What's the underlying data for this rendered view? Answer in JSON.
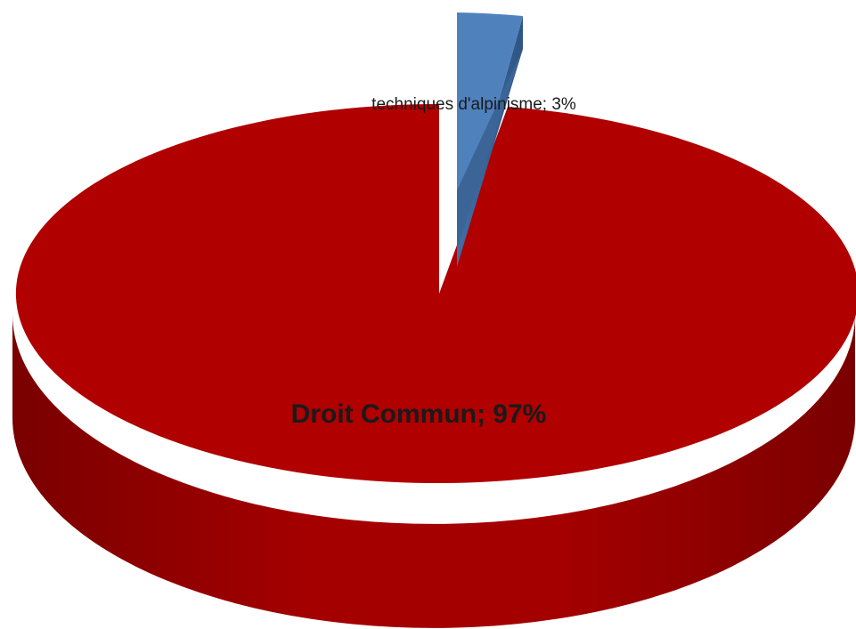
{
  "chart_data": {
    "type": "pie",
    "style": "3d-exploded",
    "title": "",
    "legend": "none",
    "slices": [
      {
        "label": "Droit Commun; 97%",
        "category": "Droit Commun",
        "value": 97,
        "color": "#b00000",
        "side_color": "#8c0000"
      },
      {
        "label": "techniques d'alpinisme; 3%",
        "category": "techniques d'alpinisme",
        "value": 3,
        "color": "#4f81bd",
        "side_color": "#3a6496"
      }
    ]
  }
}
